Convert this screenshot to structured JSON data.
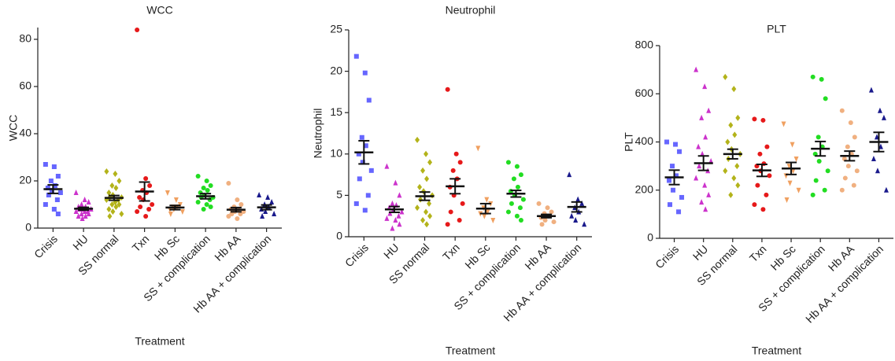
{
  "chart_data": [
    {
      "type": "dot",
      "title": "WCC",
      "xlabel": "Treatment",
      "ylabel": "WCC",
      "categories": [
        "Crisis",
        "HU",
        "SS normal",
        "Txn",
        "Hb Sc",
        "SS + complication",
        "Hb AA",
        "Hb AA + complication"
      ],
      "colors": [
        "#6666ff",
        "#cc33cc",
        "#b3b31a",
        "#e6191a",
        "#f0a060",
        "#22dd22",
        "#f0b080",
        "#1a1a8c"
      ],
      "markers": [
        "square",
        "triangle",
        "diamond",
        "circle",
        "triangle-down",
        "circle",
        "circle",
        "triangle"
      ],
      "points": [
        [
          27,
          26,
          22,
          20,
          18,
          17,
          16,
          15,
          14,
          12,
          10,
          8,
          6
        ],
        [
          15,
          12,
          11,
          10,
          9,
          9,
          8,
          8,
          8,
          7,
          7,
          7,
          6,
          6,
          5,
          5,
          4
        ],
        [
          24,
          23,
          20,
          18,
          17,
          15,
          14,
          13,
          13,
          12,
          12,
          11,
          10,
          10,
          9,
          8,
          7,
          6,
          5
        ],
        [
          84,
          21,
          18,
          16,
          15,
          13,
          12,
          10,
          9,
          8,
          7,
          5
        ],
        [
          15,
          12,
          10,
          9,
          9,
          8,
          8,
          7,
          6
        ],
        [
          22,
          20,
          18,
          17,
          16,
          15,
          14,
          13,
          13,
          12,
          11,
          10,
          9,
          8
        ],
        [
          19,
          12,
          10,
          9,
          8,
          8,
          7,
          7,
          6,
          6,
          5,
          4
        ],
        [
          14,
          13,
          11,
          10,
          9,
          8,
          7,
          6,
          5
        ]
      ],
      "means": [
        16.5,
        8.2,
        12.8,
        15.5,
        8.7,
        13.5,
        7.8,
        8.8
      ],
      "errors": [
        1.8,
        0.6,
        1.0,
        4.0,
        0.9,
        1.1,
        0.9,
        1.0
      ],
      "ylim": [
        0,
        85
      ],
      "yticks": [
        0,
        20,
        40,
        60,
        80
      ]
    },
    {
      "type": "dot",
      "title": "Neutrophil",
      "xlabel": "Treatment",
      "ylabel": "Neutrophil",
      "categories": [
        "Crisis",
        "HU",
        "SS normal",
        "Txn",
        "Hb Sc",
        "SS + complication",
        "Hb AA",
        "Hb AA + complication"
      ],
      "colors": [
        "#6666ff",
        "#cc33cc",
        "#b3b31a",
        "#e6191a",
        "#f0a060",
        "#22dd22",
        "#f0b080",
        "#1a1a8c"
      ],
      "markers": [
        "square",
        "triangle",
        "diamond",
        "circle",
        "triangle-down",
        "circle",
        "circle",
        "triangle"
      ],
      "points": [
        [
          21.8,
          19.8,
          16.5,
          12,
          11,
          10,
          9,
          8,
          7,
          5,
          4,
          3.2
        ],
        [
          8.5,
          6.5,
          5,
          4,
          3.8,
          3.5,
          3.2,
          3,
          2.8,
          2.5,
          2.2,
          2,
          1.5,
          1
        ],
        [
          11.7,
          10,
          9,
          8,
          7,
          6,
          5.5,
          5,
          4.5,
          4,
          3.5,
          3,
          2.5,
          2,
          1.5
        ],
        [
          17.8,
          10,
          9,
          8,
          7,
          6,
          5,
          4,
          3,
          2,
          1.5
        ],
        [
          10.7,
          4.5,
          4,
          3.5,
          3,
          2.8,
          2.5,
          2
        ],
        [
          9,
          8.5,
          7.5,
          7,
          6,
          5.5,
          5,
          4.5,
          4,
          3.5,
          3,
          2.5,
          2
        ],
        [
          4,
          3.5,
          3,
          2.8,
          2.5,
          2.3,
          2,
          1.8,
          1.5
        ],
        [
          7.5,
          4.5,
          4,
          3.5,
          3,
          2.5,
          2,
          1.5
        ]
      ],
      "means": [
        10.2,
        3.3,
        4.9,
        6.1,
        3.4,
        5.2,
        2.5,
        3.6
      ],
      "errors": [
        1.4,
        0.35,
        0.5,
        0.9,
        0.6,
        0.4,
        0.2,
        0.6
      ],
      "ylim": [
        0,
        25
      ],
      "yticks": [
        0,
        5,
        10,
        15,
        20,
        25
      ]
    },
    {
      "type": "dot",
      "title": "PLT",
      "xlabel": "Treatment",
      "ylabel": "PLT",
      "categories": [
        "Crisis",
        "HU",
        "SS normal",
        "Txn",
        "Hb Sc",
        "SS + complication",
        "Hb AA",
        "Hb AA + complication"
      ],
      "colors": [
        "#6666ff",
        "#cc33cc",
        "#b3b31a",
        "#e6191a",
        "#f0a060",
        "#22dd22",
        "#f0b080",
        "#1a1a8c"
      ],
      "markers": [
        "square",
        "triangle",
        "diamond",
        "circle",
        "triangle-down",
        "circle",
        "circle",
        "triangle"
      ],
      "points": [
        [
          400,
          390,
          360,
          300,
          260,
          240,
          200,
          170,
          140,
          110
        ],
        [
          700,
          630,
          530,
          500,
          420,
          380,
          350,
          320,
          300,
          280,
          250,
          220,
          180,
          150,
          120
        ],
        [
          670,
          620,
          500,
          470,
          430,
          400,
          370,
          350,
          330,
          300,
          280,
          250,
          220,
          180
        ],
        [
          495,
          490,
          380,
          350,
          310,
          300,
          280,
          260,
          220,
          180,
          140,
          120
        ],
        [
          475,
          390,
          330,
          300,
          280,
          260,
          230,
          200,
          160
        ],
        [
          670,
          660,
          580,
          420,
          380,
          350,
          320,
          280,
          240,
          200,
          180
        ],
        [
          530,
          480,
          420,
          380,
          350,
          330,
          300,
          280,
          250,
          220,
          200
        ],
        [
          615,
          530,
          500,
          420,
          380,
          330,
          280,
          200
        ]
      ],
      "means": [
        253,
        312,
        350,
        282,
        290,
        372,
        342,
        400
      ],
      "errors": [
        30,
        30,
        20,
        25,
        25,
        30,
        20,
        40
      ],
      "ylim": [
        0,
        800
      ],
      "yticks": [
        0,
        200,
        400,
        600,
        800
      ]
    }
  ]
}
